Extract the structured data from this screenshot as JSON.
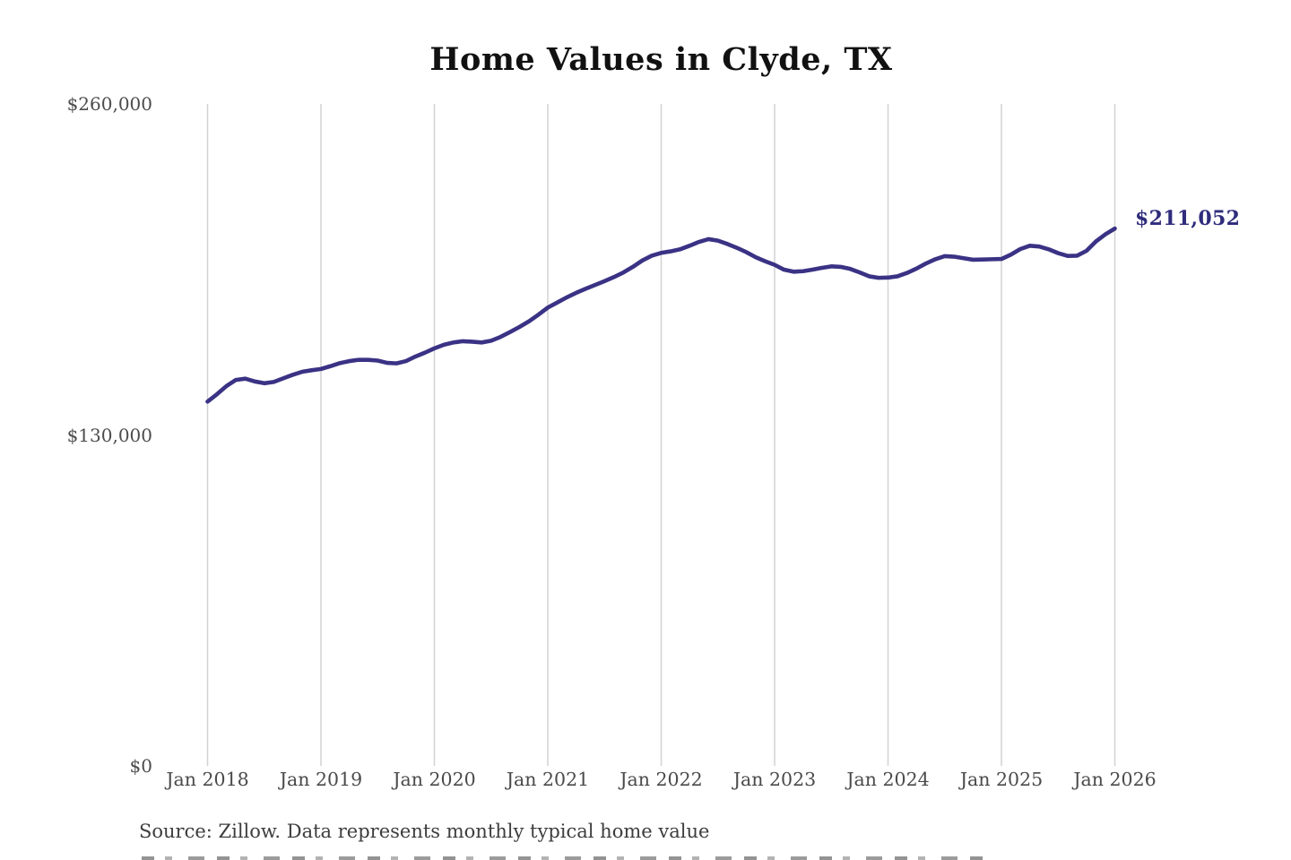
{
  "title": "Home Values in Clyde, TX",
  "source_note": "Source: Zillow. Data represents monthly typical home value",
  "annotation": {
    "label": "$211,052"
  },
  "colors": {
    "line": "#3a3284",
    "annotation": "#2f2c7c",
    "grid": "#d2d2d2",
    "tick_text": "#4a4a4a",
    "title_text": "#111111",
    "source_text": "#3d3d3d",
    "background": "#ffffff"
  },
  "chart_data": {
    "type": "line",
    "title": "Home Values in Clyde, TX",
    "x_tick_labels": [
      "Jan 2018",
      "Jan 2019",
      "Jan 2020",
      "Jan 2021",
      "Jan 2022",
      "Jan 2023",
      "Jan 2024",
      "Jan 2025",
      "Jan 2026"
    ],
    "y_ticks": [
      {
        "label": "$260,000",
        "value": 260000
      },
      {
        "label": "$130,000",
        "value": 130000
      },
      {
        "label": "$0",
        "value": 0
      }
    ],
    "ylim": [
      0,
      260000
    ],
    "grid": "vertical-only",
    "legend_position": "none",
    "x_start_month": "Jan 2018",
    "x_end_month": "Jan 2026",
    "end_value": 211052,
    "end_label": "$211,052",
    "series": [
      {
        "name": "Monthly typical home value",
        "color": "#3a3284",
        "values": [
          143100,
          146000,
          149200,
          151600,
          152100,
          151000,
          150300,
          150800,
          152200,
          153600,
          154800,
          155400,
          155900,
          157000,
          158200,
          159000,
          159500,
          159500,
          159200,
          158300,
          158100,
          159000,
          160800,
          162300,
          164000,
          165400,
          166300,
          166800,
          166600,
          166300,
          167000,
          168500,
          170400,
          172400,
          174600,
          177200,
          180000,
          182000,
          184000,
          185800,
          187400,
          188900,
          190400,
          192000,
          193800,
          196000,
          198500,
          200400,
          201500,
          202100,
          202900,
          204300,
          205800,
          206900,
          206300,
          205000,
          203500,
          201800,
          199800,
          198200,
          196800,
          194900,
          194100,
          194300,
          194900,
          195600,
          196200,
          196000,
          195200,
          193800,
          192300,
          191700,
          191800,
          192300,
          193600,
          195300,
          197300,
          199000,
          200200,
          200000,
          199400,
          198800,
          198900,
          199000,
          199100,
          200800,
          203000,
          204300,
          204000,
          202900,
          201400,
          200300,
          200400,
          202300,
          206000,
          208800,
          211052
        ]
      }
    ]
  }
}
